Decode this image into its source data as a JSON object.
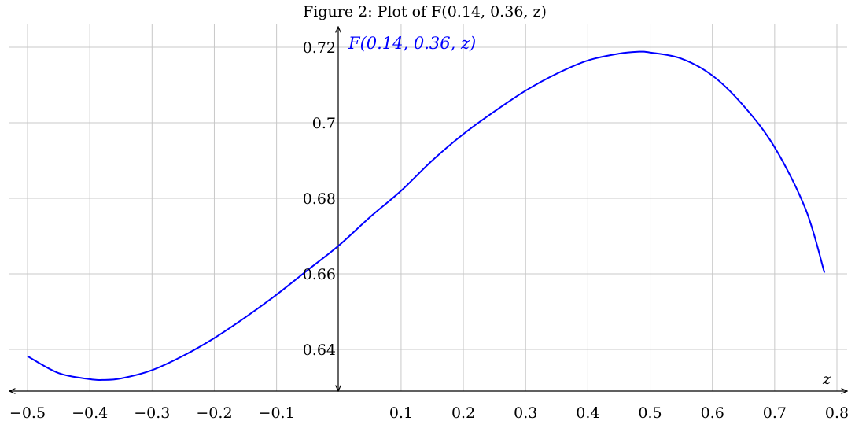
{
  "chart_data": {
    "type": "line",
    "title": "Figure 2: Plot of F(0.14, 0.36, z)",
    "xlabel": "z",
    "ylabel": "",
    "xlim": [
      -0.5,
      0.8
    ],
    "ylim": [
      0.62,
      0.73
    ],
    "grid": true,
    "x_ticks": [
      -0.5,
      -0.4,
      -0.3,
      -0.2,
      -0.1,
      0.1,
      0.2,
      0.3,
      0.4,
      0.5,
      0.6,
      0.7,
      0.8
    ],
    "x_tick_labels": [
      "−0.5",
      "−0.4",
      "−0.3",
      "−0.2",
      "−0.1",
      "0.1",
      "0.2",
      "0.3",
      "0.4",
      "0.5",
      "0.6",
      "0.7",
      "0.8"
    ],
    "y_ticks": [
      0.64,
      0.66,
      0.68,
      0.7,
      0.72
    ],
    "y_tick_labels": [
      "0.64",
      "0.66",
      "0.68",
      "0.7",
      "0.72"
    ],
    "series": [
      {
        "name": "F(0.14, 0.36, z)",
        "color": "#0000ff",
        "x": [
          -0.5,
          -0.45,
          -0.4,
          -0.38,
          -0.35,
          -0.3,
          -0.25,
          -0.2,
          -0.15,
          -0.1,
          -0.05,
          0,
          0.05,
          0.1,
          0.15,
          0.2,
          0.25,
          0.3,
          0.35,
          0.4,
          0.45,
          0.48,
          0.5,
          0.55,
          0.6,
          0.65,
          0.7,
          0.75,
          0.78
        ],
        "values": [
          0.6382,
          0.6337,
          0.6321,
          0.6319,
          0.6323,
          0.6345,
          0.6383,
          0.643,
          0.6485,
          0.6545,
          0.661,
          0.6675,
          0.675,
          0.682,
          0.69,
          0.697,
          0.703,
          0.7085,
          0.713,
          0.7165,
          0.7183,
          0.7188,
          0.7186,
          0.717,
          0.7125,
          0.7045,
          0.6935,
          0.677,
          0.6603
        ]
      }
    ]
  }
}
